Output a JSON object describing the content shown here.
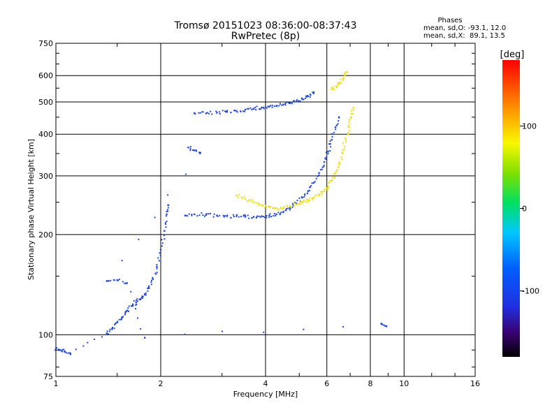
{
  "chart_data": {
    "type": "scatter",
    "title": "Tromsø 20151023 08:36:00-08:37:43",
    "subtitle": "RwPretec (8p)",
    "xlabel": "Frequency [MHz]",
    "ylabel": "Stationary phase Virtual Height [km]",
    "x_scale": "log2",
    "y_scale": "log",
    "xlim": [
      1,
      16
    ],
    "ylim": [
      75,
      750
    ],
    "grid": true,
    "x_ticks": [
      1,
      2,
      4,
      6,
      8,
      10,
      16
    ],
    "x_tick_labels": [
      "1",
      "2",
      "4",
      "6",
      "8",
      "10",
      "16"
    ],
    "x_gridlines": [
      2,
      4,
      6,
      8,
      10
    ],
    "y_ticks": [
      75,
      100,
      200,
      300,
      400,
      500,
      600,
      750
    ],
    "y_tick_labels": [
      "75",
      "100",
      "200",
      "300",
      "400",
      "500",
      "600",
      "750"
    ],
    "y_gridlines": [
      100,
      200,
      300,
      400,
      500,
      600
    ],
    "phase_stats": {
      "title": "Phases",
      "o_mode": "mean, sd,O: -93.1, 12.0",
      "x_mode": "mean, sd,X:  89.1, 13.5"
    },
    "colorbar": {
      "label": "[deg]",
      "range": [
        -180,
        180
      ],
      "ticks": [
        100,
        0,
        -100
      ],
      "tick_labels": [
        "100",
        "0",
        "-100"
      ]
    },
    "traces": [
      {
        "mode": "O",
        "phase": -95,
        "color": "#1e46e6",
        "points": [
          [
            1.0,
            91
          ],
          [
            1.03,
            90
          ],
          [
            1.06,
            89
          ],
          [
            1.1,
            88
          ],
          [
            1.4,
            101
          ],
          [
            1.45,
            104
          ],
          [
            1.5,
            109
          ],
          [
            1.55,
            113
          ],
          [
            1.6,
            118
          ],
          [
            1.65,
            122
          ],
          [
            1.7,
            125
          ],
          [
            1.75,
            128
          ],
          [
            1.8,
            132
          ],
          [
            1.85,
            138
          ],
          [
            1.9,
            147
          ],
          [
            1.95,
            160
          ],
          [
            2.0,
            180
          ],
          [
            2.05,
            205
          ],
          [
            2.08,
            230
          ],
          [
            2.1,
            245
          ]
        ]
      },
      {
        "mode": "O",
        "phase": -95,
        "color": "#1e46e6",
        "points": [
          [
            2.35,
            228
          ],
          [
            2.5,
            230
          ],
          [
            2.7,
            229
          ],
          [
            2.9,
            228
          ],
          [
            3.1,
            227
          ],
          [
            3.3,
            227
          ],
          [
            3.5,
            226
          ],
          [
            3.7,
            226
          ],
          [
            3.9,
            227
          ],
          [
            4.1,
            228
          ],
          [
            4.3,
            230
          ],
          [
            4.5,
            234
          ],
          [
            4.7,
            240
          ],
          [
            4.9,
            248
          ],
          [
            5.1,
            258
          ],
          [
            5.3,
            270
          ],
          [
            5.5,
            286
          ],
          [
            5.7,
            306
          ],
          [
            5.9,
            330
          ],
          [
            6.05,
            355
          ],
          [
            6.2,
            385
          ],
          [
            6.35,
            420
          ],
          [
            6.5,
            450
          ]
        ]
      },
      {
        "mode": "O",
        "phase": -95,
        "color": "#1e46e6",
        "points": [
          [
            2.5,
            463
          ],
          [
            2.7,
            462
          ],
          [
            2.9,
            464
          ],
          [
            3.1,
            467
          ],
          [
            3.3,
            470
          ],
          [
            3.5,
            474
          ],
          [
            3.7,
            477
          ],
          [
            3.9,
            481
          ],
          [
            4.1,
            484
          ],
          [
            4.3,
            487
          ],
          [
            4.5,
            491
          ],
          [
            4.7,
            496
          ],
          [
            4.9,
            502
          ],
          [
            5.1,
            510
          ],
          [
            5.3,
            520
          ],
          [
            5.5,
            535
          ]
        ]
      },
      {
        "mode": "X",
        "phase": 92,
        "color": "#f0e010",
        "points": [
          [
            3.3,
            262
          ],
          [
            3.5,
            256
          ],
          [
            3.7,
            250
          ],
          [
            3.9,
            245
          ],
          [
            4.1,
            242
          ],
          [
            4.3,
            240
          ],
          [
            4.5,
            240
          ],
          [
            4.7,
            243
          ],
          [
            4.9,
            246
          ],
          [
            5.1,
            250
          ],
          [
            5.3,
            254
          ],
          [
            5.5,
            258
          ],
          [
            5.7,
            263
          ],
          [
            5.9,
            270
          ],
          [
            6.05,
            278
          ],
          [
            6.2,
            290
          ],
          [
            6.35,
            305
          ],
          [
            6.5,
            325
          ],
          [
            6.65,
            352
          ],
          [
            6.8,
            385
          ],
          [
            6.95,
            420
          ],
          [
            7.05,
            450
          ],
          [
            7.15,
            480
          ]
        ]
      },
      {
        "mode": "X",
        "phase": 92,
        "color": "#f0e010",
        "points": [
          [
            6.2,
            545
          ],
          [
            6.4,
            555
          ],
          [
            6.55,
            570
          ],
          [
            6.7,
            590
          ],
          [
            6.85,
            615
          ]
        ]
      },
      {
        "mode": "O",
        "phase": -95,
        "color": "#1e46e6",
        "points": [
          [
            2.4,
            365
          ],
          [
            2.5,
            358
          ],
          [
            2.6,
            352
          ],
          [
            1.4,
            145
          ],
          [
            1.5,
            146
          ],
          [
            1.6,
            143
          ],
          [
            1.8,
            98
          ],
          [
            8.6,
            108
          ],
          [
            8.9,
            106
          ]
        ]
      }
    ]
  }
}
